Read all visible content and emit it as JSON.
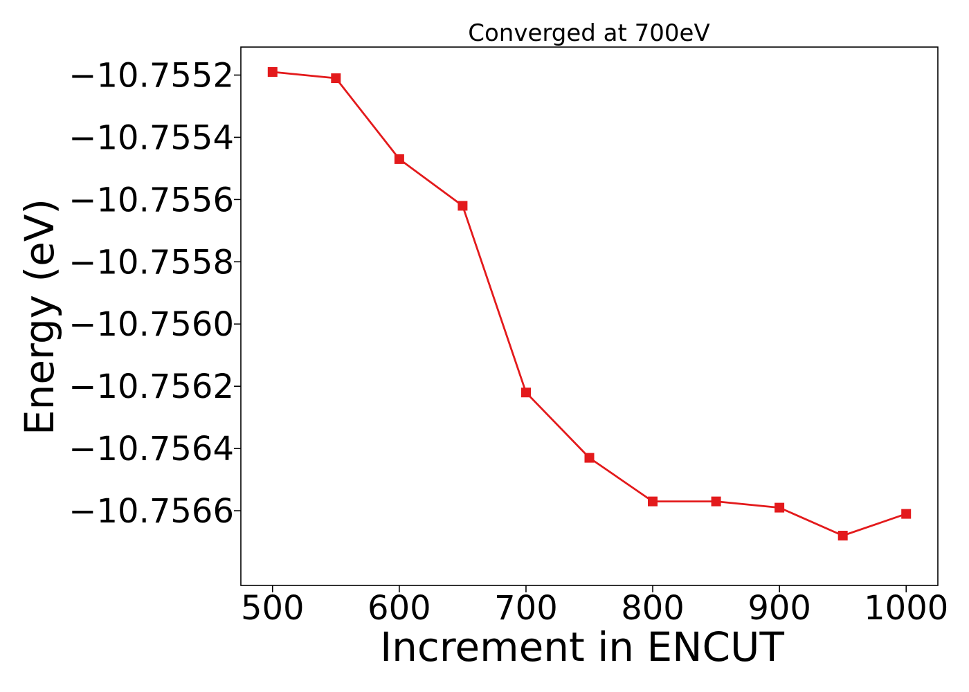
{
  "chart_data": {
    "type": "line",
    "title": "Converged at 700eV",
    "xlabel": "Increment in ENCUT",
    "ylabel": "Energy (eV)",
    "x": [
      500,
      550,
      600,
      650,
      700,
      750,
      800,
      850,
      900,
      950,
      1000
    ],
    "series": [
      {
        "values": [
          -10.75519,
          -10.75521,
          -10.75547,
          -10.75562,
          -10.75622,
          -10.75643,
          -10.75657,
          -10.75657,
          -10.75659,
          -10.75668,
          -10.75661
        ],
        "color": "#e31a1c",
        "marker": "square"
      }
    ],
    "xticks": [
      500,
      600,
      700,
      800,
      900,
      1000
    ],
    "xtick_labels": [
      "500",
      "600",
      "700",
      "800",
      "900",
      "1000"
    ],
    "yticks": [
      -10.7552,
      -10.7554,
      -10.7556,
      -10.7558,
      -10.756,
      -10.7562,
      -10.7564,
      -10.7566
    ],
    "ytick_labels": [
      "−10.7552",
      "−10.7554",
      "−10.7556",
      "−10.7558",
      "−10.7560",
      "−10.7562",
      "−10.7564",
      "−10.7566"
    ],
    "xlim": [
      475,
      1025
    ],
    "ylim": [
      -10.75684,
      -10.75511
    ],
    "grid": false,
    "legend": false
  }
}
